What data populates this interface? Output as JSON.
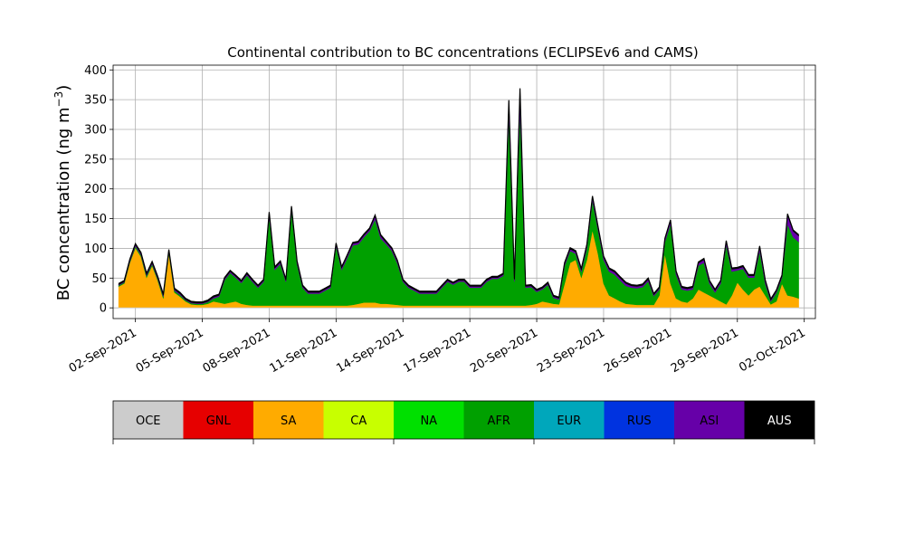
{
  "chart_data": {
    "type": "area",
    "title": "Continental contribution to BC concentrations (ECLIPSEv6 and CAMS)",
    "ylabel": "BC concentration (ng m",
    "ylabel_superscript": "−3",
    "ylabel_suffix": ")",
    "ylim": [
      -18,
      408
    ],
    "yticks": [
      0,
      50,
      100,
      150,
      200,
      250,
      300,
      350,
      400
    ],
    "xlim": [
      "2021-09-01T00:00",
      "2021-10-02T12:00"
    ],
    "xticks": [
      {
        "date": "2021-09-02",
        "label": "02-Sep-2021"
      },
      {
        "date": "2021-09-05",
        "label": "05-Sep-2021"
      },
      {
        "date": "2021-09-08",
        "label": "08-Sep-2021"
      },
      {
        "date": "2021-09-11",
        "label": "11-Sep-2021"
      },
      {
        "date": "2021-09-14",
        "label": "14-Sep-2021"
      },
      {
        "date": "2021-09-17",
        "label": "17-Sep-2021"
      },
      {
        "date": "2021-09-20",
        "label": "20-Sep-2021"
      },
      {
        "date": "2021-09-23",
        "label": "23-Sep-2021"
      },
      {
        "date": "2021-09-26",
        "label": "26-Sep-2021"
      },
      {
        "date": "2021-09-29",
        "label": "29-Sep-2021"
      },
      {
        "date": "2021-10-02",
        "label": "02-Oct-2021"
      }
    ],
    "grid": true,
    "legend": {
      "placement": "bottom",
      "entries": [
        {
          "name": "OCE",
          "color": "#cccccc"
        },
        {
          "name": "GNL",
          "color": "#e60000"
        },
        {
          "name": "SA",
          "color": "#ffab00"
        },
        {
          "name": "CA",
          "color": "#c8ff00"
        },
        {
          "name": "NA",
          "color": "#00e000"
        },
        {
          "name": "AFR",
          "color": "#00a000"
        },
        {
          "name": "EUR",
          "color": "#00a7bb"
        },
        {
          "name": "RUS",
          "color": "#0033e0"
        },
        {
          "name": "ASI",
          "color": "#6600a8"
        },
        {
          "name": "AUS",
          "color": "#000000"
        }
      ]
    },
    "x": [
      "2021-09-01T06:00",
      "2021-09-01T12:00",
      "2021-09-01T18:00",
      "2021-09-02T00:00",
      "2021-09-02T06:00",
      "2021-09-02T12:00",
      "2021-09-02T18:00",
      "2021-09-03T00:00",
      "2021-09-03T06:00",
      "2021-09-03T12:00",
      "2021-09-03T18:00",
      "2021-09-04T00:00",
      "2021-09-04T06:00",
      "2021-09-04T12:00",
      "2021-09-04T18:00",
      "2021-09-05T00:00",
      "2021-09-05T06:00",
      "2021-09-05T12:00",
      "2021-09-05T18:00",
      "2021-09-06T00:00",
      "2021-09-06T06:00",
      "2021-09-06T12:00",
      "2021-09-06T18:00",
      "2021-09-07T00:00",
      "2021-09-07T06:00",
      "2021-09-07T12:00",
      "2021-09-07T18:00",
      "2021-09-08T00:00",
      "2021-09-08T06:00",
      "2021-09-08T12:00",
      "2021-09-08T18:00",
      "2021-09-09T00:00",
      "2021-09-09T06:00",
      "2021-09-09T12:00",
      "2021-09-09T18:00",
      "2021-09-10T00:00",
      "2021-09-10T06:00",
      "2021-09-10T12:00",
      "2021-09-10T18:00",
      "2021-09-11T00:00",
      "2021-09-11T06:00",
      "2021-09-11T12:00",
      "2021-09-11T18:00",
      "2021-09-12T00:00",
      "2021-09-12T06:00",
      "2021-09-12T12:00",
      "2021-09-12T18:00",
      "2021-09-13T00:00",
      "2021-09-13T06:00",
      "2021-09-13T12:00",
      "2021-09-13T18:00",
      "2021-09-14T00:00",
      "2021-09-14T06:00",
      "2021-09-14T12:00",
      "2021-09-14T18:00",
      "2021-09-15T00:00",
      "2021-09-15T06:00",
      "2021-09-15T12:00",
      "2021-09-15T18:00",
      "2021-09-16T00:00",
      "2021-09-16T06:00",
      "2021-09-16T12:00",
      "2021-09-16T18:00",
      "2021-09-17T00:00",
      "2021-09-17T06:00",
      "2021-09-17T12:00",
      "2021-09-17T18:00",
      "2021-09-18T00:00",
      "2021-09-18T06:00",
      "2021-09-18T12:00",
      "2021-09-18T18:00",
      "2021-09-19T00:00",
      "2021-09-19T06:00",
      "2021-09-19T12:00",
      "2021-09-19T18:00",
      "2021-09-20T00:00",
      "2021-09-20T06:00",
      "2021-09-20T12:00",
      "2021-09-20T18:00",
      "2021-09-21T00:00",
      "2021-09-21T06:00",
      "2021-09-21T12:00",
      "2021-09-21T18:00",
      "2021-09-22T00:00",
      "2021-09-22T06:00",
      "2021-09-22T12:00",
      "2021-09-22T18:00",
      "2021-09-23T00:00",
      "2021-09-23T06:00",
      "2021-09-23T12:00",
      "2021-09-23T18:00",
      "2021-09-24T00:00",
      "2021-09-24T06:00",
      "2021-09-24T12:00",
      "2021-09-24T18:00",
      "2021-09-25T00:00",
      "2021-09-25T06:00",
      "2021-09-25T12:00",
      "2021-09-25T18:00",
      "2021-09-26T00:00",
      "2021-09-26T06:00",
      "2021-09-26T12:00",
      "2021-09-26T18:00",
      "2021-09-27T00:00",
      "2021-09-27T06:00",
      "2021-09-27T12:00",
      "2021-09-27T18:00",
      "2021-09-28T00:00",
      "2021-09-28T06:00",
      "2021-09-28T12:00",
      "2021-09-28T18:00",
      "2021-09-29T00:00",
      "2021-09-29T06:00",
      "2021-09-29T12:00",
      "2021-09-29T18:00",
      "2021-09-30T00:00",
      "2021-09-30T06:00",
      "2021-09-30T12:00",
      "2021-09-30T18:00",
      "2021-10-01T00:00",
      "2021-10-01T06:00",
      "2021-10-01T12:00",
      "2021-10-01T18:00"
    ],
    "series": [
      {
        "name": "OCE",
        "values": [
          1,
          1,
          1,
          1,
          1,
          1,
          1,
          1,
          1,
          1,
          1,
          1,
          1,
          1,
          1,
          1,
          1,
          1,
          1,
          1,
          1,
          1,
          1,
          1,
          1,
          1,
          1,
          1,
          1,
          1,
          1,
          1,
          1,
          1,
          1,
          1,
          1,
          1,
          1,
          1,
          1,
          1,
          1,
          1,
          1,
          1,
          1,
          1,
          1,
          1,
          1,
          1,
          1,
          1,
          1,
          1,
          1,
          1,
          1,
          1,
          1,
          1,
          1,
          1,
          1,
          1,
          1,
          1,
          1,
          1,
          1,
          1,
          1,
          1,
          1,
          1,
          1,
          1,
          1,
          1,
          1,
          1,
          1,
          1,
          1,
          1,
          1,
          1,
          1,
          1,
          1,
          1,
          1,
          1,
          1,
          1,
          1,
          1,
          1,
          1,
          1,
          1,
          1,
          1,
          1,
          1,
          1,
          1,
          1,
          1,
          1,
          1,
          1,
          1,
          1,
          1,
          1,
          1,
          1,
          1,
          1,
          1,
          1
        ]
      },
      {
        "name": "SA",
        "values": [
          35,
          40,
          75,
          100,
          85,
          50,
          70,
          45,
          15,
          90,
          25,
          18,
          10,
          5,
          4,
          4,
          6,
          10,
          8,
          6,
          8,
          10,
          6,
          4,
          3,
          3,
          3,
          3,
          3,
          3,
          3,
          3,
          3,
          3,
          3,
          3,
          3,
          3,
          3,
          3,
          3,
          3,
          4,
          6,
          8,
          8,
          8,
          6,
          6,
          5,
          4,
          3,
          3,
          3,
          3,
          3,
          3,
          3,
          3,
          3,
          3,
          3,
          3,
          3,
          3,
          3,
          3,
          3,
          3,
          3,
          3,
          3,
          3,
          3,
          4,
          6,
          10,
          8,
          6,
          5,
          40,
          75,
          80,
          50,
          80,
          130,
          90,
          40,
          20,
          15,
          10,
          6,
          5,
          4,
          4,
          4,
          4,
          20,
          90,
          40,
          15,
          10,
          8,
          15,
          30,
          25,
          20,
          15,
          10,
          5,
          20,
          42,
          30,
          20,
          30,
          35,
          20,
          5,
          10,
          40,
          20,
          18,
          15
        ]
      },
      {
        "name": "AFR",
        "values": [
          2,
          2,
          2,
          3,
          3,
          3,
          3,
          3,
          3,
          3,
          3,
          3,
          2,
          2,
          2,
          2,
          3,
          5,
          10,
          40,
          50,
          40,
          35,
          50,
          40,
          30,
          40,
          150,
          60,
          70,
          40,
          160,
          70,
          30,
          20,
          20,
          20,
          25,
          30,
          100,
          60,
          80,
          100,
          100,
          110,
          120,
          140,
          110,
          100,
          90,
          70,
          40,
          30,
          25,
          20,
          20,
          20,
          20,
          30,
          40,
          35,
          40,
          40,
          30,
          30,
          30,
          40,
          45,
          45,
          50,
          320,
          40,
          330,
          30,
          30,
          20,
          20,
          30,
          10,
          8,
          30,
          20,
          10,
          10,
          20,
          50,
          40,
          40,
          40,
          40,
          35,
          30,
          28,
          28,
          30,
          40,
          15,
          10,
          20,
          100,
          40,
          20,
          20,
          15,
          40,
          50,
          20,
          10,
          30,
          100,
          40,
          20,
          35,
          30,
          20,
          60,
          20,
          5,
          15,
          10,
          120,
          100,
          95
        ]
      },
      {
        "name": "ASI",
        "values": [
          1,
          1,
          2,
          2,
          2,
          2,
          2,
          2,
          2,
          2,
          2,
          2,
          1,
          1,
          1,
          1,
          1,
          2,
          2,
          2,
          2,
          2,
          2,
          2,
          2,
          2,
          2,
          5,
          3,
          3,
          2,
          5,
          3,
          2,
          2,
          2,
          2,
          2,
          2,
          3,
          3,
          3,
          3,
          3,
          3,
          3,
          5,
          4,
          3,
          3,
          3,
          2,
          2,
          2,
          2,
          2,
          2,
          2,
          2,
          2,
          2,
          2,
          2,
          2,
          2,
          2,
          2,
          2,
          2,
          2,
          20,
          3,
          30,
          2,
          2,
          2,
          2,
          2,
          2,
          2,
          3,
          3,
          3,
          3,
          4,
          5,
          4,
          4,
          4,
          4,
          4,
          4,
          3,
          3,
          3,
          3,
          2,
          2,
          4,
          5,
          4,
          3,
          3,
          3,
          4,
          5,
          3,
          3,
          3,
          5,
          4,
          3,
          3,
          3,
          3,
          6,
          4,
          2,
          2,
          2,
          15,
          10,
          10
        ]
      },
      {
        "name": "AUS",
        "values": [
          2,
          2,
          2,
          2,
          2,
          2,
          2,
          2,
          2,
          2,
          2,
          2,
          2,
          2,
          2,
          2,
          2,
          2,
          2,
          2,
          2,
          2,
          2,
          2,
          2,
          2,
          2,
          2,
          2,
          2,
          2,
          2,
          2,
          2,
          2,
          2,
          2,
          2,
          2,
          2,
          2,
          2,
          2,
          2,
          2,
          2,
          2,
          2,
          2,
          2,
          2,
          2,
          2,
          2,
          2,
          2,
          2,
          2,
          2,
          2,
          2,
          2,
          2,
          2,
          2,
          2,
          2,
          2,
          2,
          2,
          5,
          2,
          5,
          2,
          2,
          2,
          2,
          2,
          2,
          2,
          2,
          2,
          2,
          2,
          2,
          2,
          2,
          2,
          2,
          2,
          2,
          2,
          2,
          2,
          2,
          2,
          2,
          2,
          2,
          2,
          2,
          2,
          2,
          2,
          2,
          2,
          2,
          2,
          2,
          2,
          2,
          2,
          2,
          2,
          2,
          2,
          2,
          2,
          2,
          2,
          2,
          2,
          2
        ]
      }
    ]
  }
}
